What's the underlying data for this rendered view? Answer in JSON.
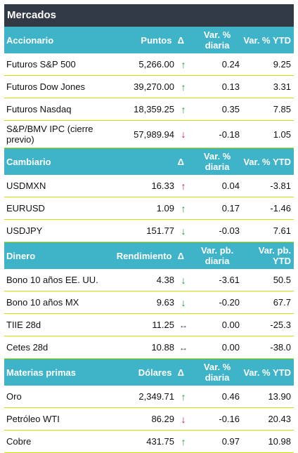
{
  "title": "Mercados",
  "sections": [
    {
      "header": {
        "name": "Accionario",
        "col2": "Puntos",
        "col3": "Δ",
        "col4": "Var. % diaria",
        "col5": "Var. % YTD"
      },
      "rows": [
        {
          "name": "Futuros S&P 500",
          "value": "5,266.00",
          "arrow": "↑",
          "arrow_dir": "up",
          "var": "0.24",
          "ytd": "9.25"
        },
        {
          "name": "Futuros Dow Jones",
          "value": "39,270.00",
          "arrow": "↑",
          "arrow_dir": "up",
          "var": "0.13",
          "ytd": "3.31"
        },
        {
          "name": "Futuros Nasdaq",
          "value": "18,359.25",
          "arrow": "↑",
          "arrow_dir": "up",
          "var": "0.35",
          "ytd": "7.85"
        },
        {
          "name": "S&P/BMV IPC (cierre previo)",
          "value": "57,989.94",
          "arrow": "↓",
          "arrow_dir": "down",
          "var": "-0.18",
          "ytd": "1.05"
        }
      ]
    },
    {
      "header": {
        "name": "Cambiario",
        "col2": "",
        "col3": "Δ",
        "col4": "Var. % diaria",
        "col5": "Var. % YTD"
      },
      "rows": [
        {
          "name": "USDMXN",
          "value": "16.33",
          "arrow": "↑",
          "arrow_dir": "up-red",
          "var": "0.04",
          "ytd": "-3.81"
        },
        {
          "name": "EURUSD",
          "value": "1.09",
          "arrow": "↑",
          "arrow_dir": "up",
          "var": "0.17",
          "ytd": "-1.46"
        },
        {
          "name": "USDJPY",
          "value": "151.77",
          "arrow": "↓",
          "arrow_dir": "up",
          "var": "-0.03",
          "ytd": "7.61"
        }
      ]
    },
    {
      "header": {
        "name": "Dinero",
        "col2": "Rendimiento",
        "col3": "Δ",
        "col4": "Var. pb. diaria",
        "col5": "Var. pb. YTD"
      },
      "rows": [
        {
          "name": "Bono 10 años EE. UU.",
          "value": "4.38",
          "arrow": "↓",
          "arrow_dir": "up",
          "var": "-3.61",
          "ytd": "50.5"
        },
        {
          "name": "Bono 10 años MX",
          "value": "9.63",
          "arrow": "↓",
          "arrow_dir": "up",
          "var": "-0.20",
          "ytd": "67.7"
        },
        {
          "name": "TIIE 28d",
          "value": "11.25",
          "arrow": "↔",
          "arrow_dir": "flat",
          "var": "0.00",
          "ytd": "-25.3"
        },
        {
          "name": "Cetes 28d",
          "value": "10.88",
          "arrow": "↔",
          "arrow_dir": "flat",
          "var": "0.00",
          "ytd": "-38.0"
        }
      ]
    },
    {
      "header": {
        "name": "Materias primas",
        "col2": "Dólares",
        "col3": "Δ",
        "col4": "Var. % diaria",
        "col5": "Var. % YTD"
      },
      "rows": [
        {
          "name": "Oro",
          "value": "2,349.71",
          "arrow": "↑",
          "arrow_dir": "up",
          "var": "0.46",
          "ytd": "13.90"
        },
        {
          "name": "Petróleo WTI",
          "value": "86.29",
          "arrow": "↓",
          "arrow_dir": "down",
          "var": "-0.16",
          "ytd": "20.43"
        },
        {
          "name": "Cobre",
          "value": "431.75",
          "arrow": "↑",
          "arrow_dir": "up",
          "var": "0.97",
          "ytd": "10.98"
        }
      ]
    }
  ]
}
